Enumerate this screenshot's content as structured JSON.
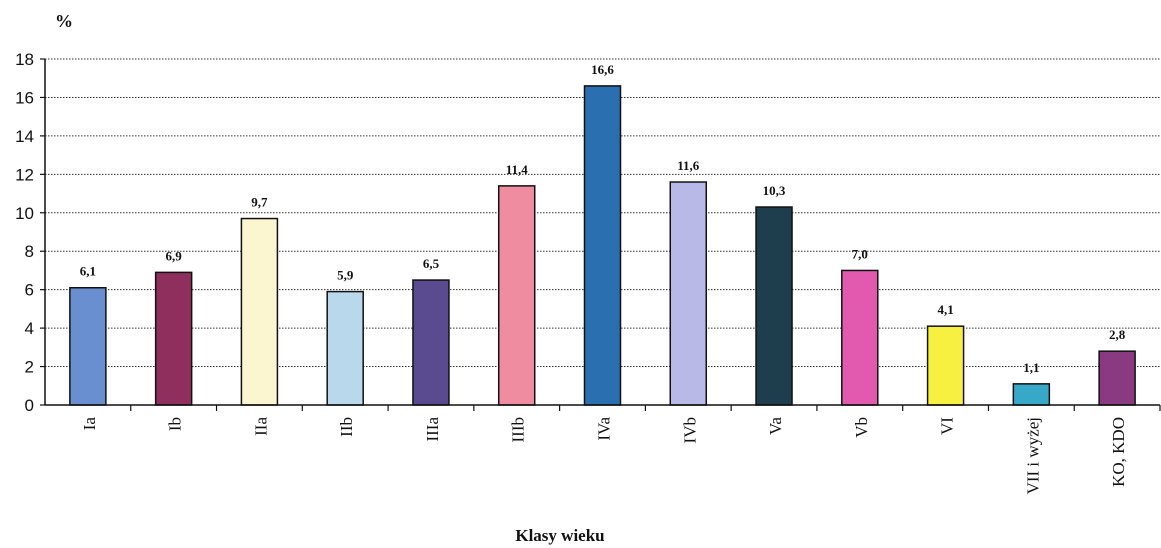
{
  "chart_data": {
    "type": "bar",
    "title": "",
    "ylabel": "%",
    "xlabel": "Klasy  wieku",
    "ylim": [
      0,
      18
    ],
    "yticks": [
      0,
      2,
      4,
      6,
      8,
      10,
      12,
      14,
      16,
      18
    ],
    "grid": true,
    "legend": "none",
    "categories": [
      "Ia",
      "Ib",
      "IIa",
      "IIb",
      "IIIa",
      "IIIb",
      "IVa",
      "IVb",
      "Va",
      "Vb",
      "VI",
      "VII i wyżej",
      "KO, KDO"
    ],
    "values": [
      6.1,
      6.9,
      9.7,
      5.9,
      6.5,
      11.4,
      16.6,
      11.6,
      10.3,
      7.0,
      4.1,
      1.1,
      2.8
    ],
    "value_labels": [
      "6,1",
      "6,9",
      "9,7",
      "5,9",
      "6,5",
      "11,4",
      "16,6",
      "11,6",
      "10,3",
      "7,0",
      "4,1",
      "1,1",
      "2,8"
    ],
    "colors": [
      "#6a8fd0",
      "#8e2f5e",
      "#fbf5d0",
      "#b9d8ec",
      "#5a4a90",
      "#f08ca0",
      "#2a6fb0",
      "#b9b9e8",
      "#1e3e4e",
      "#e25ab0",
      "#f8f040",
      "#38a8c8",
      "#8a3a80"
    ]
  }
}
